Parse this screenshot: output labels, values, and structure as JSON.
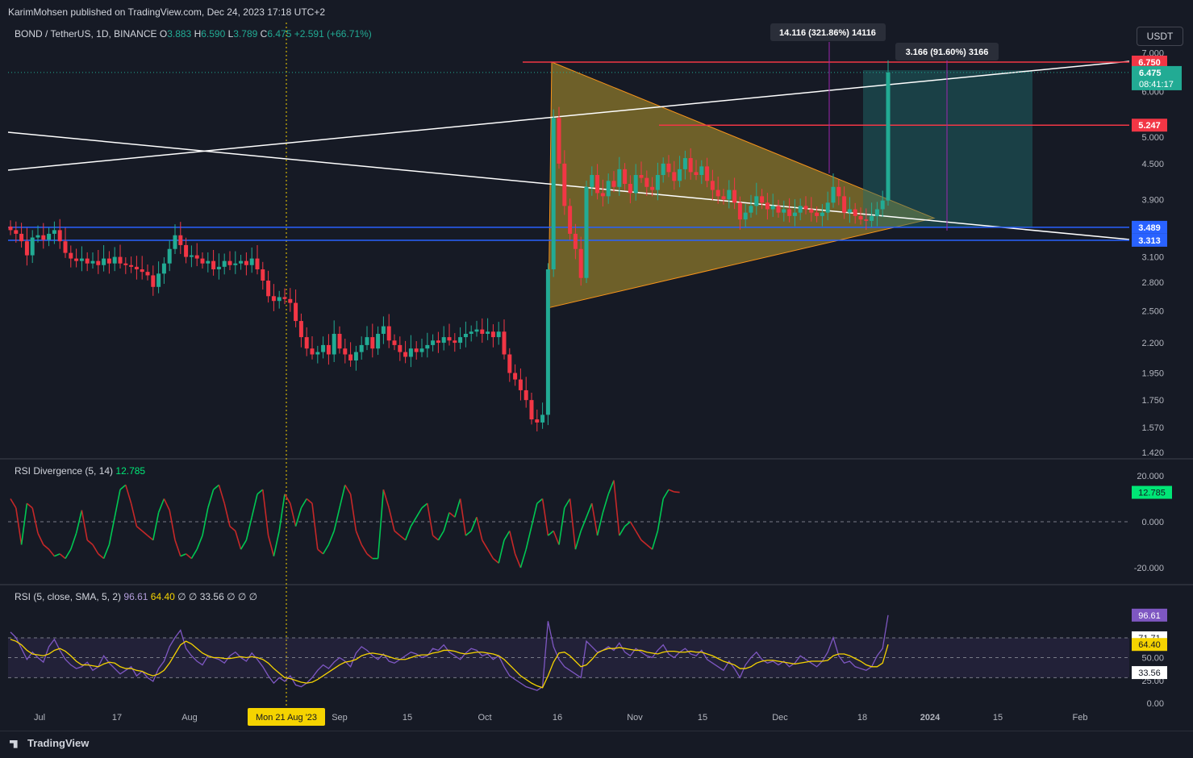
{
  "header": {
    "published": "KarimMohsen published on TradingView.com, Dec 24, 2023 17:18 UTC+2"
  },
  "legend": {
    "symbol": "BOND / TetherUS, 1D, BINANCE",
    "o_label": "O",
    "o": "3.883",
    "h_label": "H",
    "h": "6.590",
    "l_label": "L",
    "l": "3.789",
    "c_label": "C",
    "c": "6.475",
    "change": "+2.591 (+66.71%)"
  },
  "currency_button": "USDT",
  "footer": {
    "brand": "TradingView"
  },
  "colors": {
    "up": "#22ab94",
    "down": "#f23645",
    "bg": "#161a25",
    "triangle": "#b89a2e",
    "rsi": "#7e57c2",
    "sma": "#f5d300"
  },
  "chart_data": [
    {
      "type": "candlestick",
      "title": "BOND / TetherUS, 1D, BINANCE",
      "x_ticks": [
        "Jul",
        "17",
        "Aug",
        "Mon 21 Aug '23",
        "Sep",
        "15",
        "Oct",
        "16",
        "Nov",
        "15",
        "Dec",
        "18",
        "2024",
        "15",
        "Feb"
      ],
      "y_ticks": [
        "7.000",
        "6.000",
        "5.000",
        "4.500",
        "3.900",
        "3.100",
        "2.800",
        "2.500",
        "2.200",
        "1.950",
        "1.750",
        "1.570",
        "1.420"
      ],
      "y_scale": "log",
      "ylim": [
        1.42,
        7.0
      ],
      "last_price": "6.475",
      "countdown": "08:41:17",
      "price_labels": [
        {
          "value": "6.750",
          "color": "#f23645"
        },
        {
          "value": "5.247",
          "color": "#f23645"
        },
        {
          "value": "3.489",
          "color": "#2962ff"
        },
        {
          "value": "3.313",
          "color": "#2962ff"
        }
      ],
      "annotations": [
        "14.116 (321.86%) 14116",
        "3.166 (91.60%) 3166"
      ],
      "closes": [
        3.45,
        3.4,
        3.3,
        3.12,
        3.35,
        3.38,
        3.32,
        3.4,
        3.45,
        3.3,
        3.15,
        3.08,
        3.05,
        3.08,
        3.02,
        3.05,
        3.0,
        3.08,
        3.02,
        3.1,
        3.02,
        3.0,
        2.98,
        2.95,
        2.92,
        2.88,
        2.75,
        2.9,
        3.02,
        3.2,
        3.38,
        3.25,
        3.1,
        3.12,
        3.08,
        3.02,
        3.05,
        2.95,
        2.98,
        3.05,
        3.0,
        3.02,
        3.05,
        3.0,
        3.08,
        2.95,
        2.82,
        2.65,
        2.6,
        2.64,
        2.62,
        2.58,
        2.4,
        2.25,
        2.15,
        2.1,
        2.12,
        2.18,
        2.1,
        2.28,
        2.15,
        2.1,
        2.05,
        2.12,
        2.18,
        2.25,
        2.15,
        2.28,
        2.35,
        2.22,
        2.18,
        2.12,
        2.08,
        2.15,
        2.12,
        2.15,
        2.18,
        2.22,
        2.2,
        2.25,
        2.22,
        2.2,
        2.25,
        2.28,
        2.3,
        2.32,
        2.28,
        2.3,
        2.25,
        2.3,
        2.1,
        1.95,
        1.9,
        1.82,
        1.75,
        1.62,
        1.6,
        1.65,
        2.95,
        5.4,
        4.5,
        3.8,
        3.4,
        3.2,
        2.85,
        4.1,
        4.3,
        4.0,
        3.95,
        4.2,
        4.1,
        4.4,
        4.15,
        4.0,
        4.3,
        4.25,
        4.1,
        4.05,
        4.3,
        4.5,
        4.35,
        4.2,
        4.4,
        4.6,
        4.35,
        4.3,
        4.45,
        4.2,
        4.05,
        3.95,
        3.9,
        4.05,
        3.85,
        3.6,
        3.7,
        3.8,
        3.95,
        3.85,
        3.75,
        3.8,
        3.7,
        3.75,
        3.65,
        3.7,
        3.8,
        3.75,
        3.7,
        3.65,
        3.7,
        3.85,
        4.1,
        3.95,
        3.7,
        3.75,
        3.65,
        3.6,
        3.58,
        3.65,
        3.75,
        3.883,
        6.475
      ]
    },
    {
      "type": "line",
      "title": "RSI Divergence (5, 14)",
      "value": "12.785",
      "y_ticks": [
        "20.000",
        "0.000",
        "-20.000"
      ],
      "ylim": [
        -24,
        24
      ],
      "values": [
        10,
        6,
        -10,
        8,
        6,
        -5,
        -10,
        -12,
        -15,
        -14,
        -16,
        -12,
        -5,
        5,
        -8,
        -10,
        -14,
        -16,
        -10,
        2,
        14,
        16,
        8,
        -2,
        -4,
        -6,
        -8,
        4,
        10,
        5,
        -8,
        -15,
        -14,
        -16,
        -12,
        -6,
        6,
        14,
        16,
        8,
        -2,
        -4,
        -12,
        -8,
        2,
        12,
        14,
        -6,
        -15,
        -4,
        12,
        8,
        -2,
        6,
        10,
        8,
        -12,
        -14,
        -10,
        -4,
        6,
        16,
        12,
        -4,
        -10,
        -14,
        -16,
        -16,
        14,
        6,
        -4,
        -6,
        -8,
        -2,
        2,
        6,
        8,
        -6,
        -8,
        -4,
        4,
        2,
        10,
        -6,
        -4,
        2,
        -8,
        -12,
        -16,
        -18,
        -8,
        -4,
        -14,
        -20,
        -12,
        -2,
        8,
        10,
        -6,
        -4,
        -10,
        6,
        10,
        -12,
        -4,
        2,
        8,
        -6,
        4,
        12,
        18,
        -6,
        -2,
        0,
        -4,
        -8,
        -10,
        -12,
        -4,
        10,
        14,
        13,
        12.785
      ]
    },
    {
      "type": "line",
      "title": "RSI (5, close, SMA, 5, 2)",
      "rsi": "96.61",
      "sma": "64.40",
      "level_labels": [
        "71.71",
        "33.56"
      ],
      "y_ticks": [
        "75.00",
        "50.00",
        "25.00",
        "0.00"
      ],
      "ylim": [
        0,
        100
      ],
      "rsi_values": [
        78,
        72,
        60,
        48,
        56,
        50,
        45,
        62,
        70,
        58,
        48,
        42,
        38,
        40,
        45,
        36,
        40,
        52,
        44,
        38,
        32,
        36,
        40,
        30,
        35,
        28,
        24,
        38,
        46,
        62,
        72,
        80,
        60,
        52,
        46,
        42,
        52,
        50,
        48,
        44,
        52,
        56,
        50,
        46,
        55,
        48,
        40,
        30,
        22,
        28,
        24,
        30,
        20,
        18,
        22,
        28,
        36,
        42,
        38,
        45,
        50,
        46,
        40,
        55,
        62,
        58,
        52,
        48,
        54,
        46,
        44,
        48,
        52,
        56,
        54,
        50,
        52,
        60,
        58,
        64,
        56,
        52,
        48,
        55,
        60,
        58,
        52,
        54,
        48,
        52,
        40,
        30,
        26,
        22,
        18,
        16,
        14,
        18,
        90,
        62,
        48,
        40,
        36,
        32,
        28,
        68,
        62,
        56,
        58,
        62,
        58,
        66,
        56,
        52,
        60,
        56,
        52,
        50,
        58,
        64,
        54,
        50,
        56,
        60,
        54,
        52,
        58,
        48,
        44,
        40,
        36,
        46,
        38,
        28,
        42,
        50,
        56,
        48,
        44,
        46,
        42,
        46,
        40,
        44,
        52,
        48,
        44,
        40,
        46,
        56,
        72,
        52,
        44,
        46,
        40,
        38,
        36,
        40,
        52,
        60,
        96.61
      ],
      "sma_values": [
        70,
        68,
        64,
        58,
        54,
        53,
        52,
        54,
        58,
        60,
        57,
        52,
        46,
        42,
        42,
        41,
        40,
        43,
        45,
        44,
        40,
        38,
        38,
        36,
        35,
        32,
        30,
        32,
        36,
        44,
        54,
        64,
        68,
        65,
        60,
        55,
        52,
        50,
        50,
        49,
        49,
        50,
        51,
        50,
        51,
        50,
        48,
        44,
        38,
        33,
        28,
        27,
        25,
        23,
        22,
        23,
        26,
        30,
        34,
        38,
        42,
        45,
        46,
        48,
        52,
        54,
        55,
        54,
        53,
        51,
        49,
        48,
        48,
        50,
        52,
        53,
        53,
        55,
        56,
        58,
        58,
        57,
        55,
        54,
        55,
        56,
        56,
        55,
        54,
        52,
        48,
        42,
        36,
        30,
        26,
        22,
        19,
        17,
        30,
        45,
        55,
        56,
        52,
        46,
        40,
        42,
        48,
        55,
        58,
        60,
        60,
        61,
        60,
        59,
        58,
        58,
        56,
        55,
        54,
        56,
        57,
        57,
        56,
        56,
        57,
        56,
        56,
        54,
        52,
        49,
        46,
        44,
        42,
        38,
        38,
        40,
        44,
        46,
        47,
        47,
        46,
        45,
        44,
        43,
        44,
        45,
        46,
        46,
        46,
        47,
        52,
        54,
        54,
        52,
        49,
        46,
        42,
        40,
        40,
        44,
        64.4
      ]
    }
  ]
}
